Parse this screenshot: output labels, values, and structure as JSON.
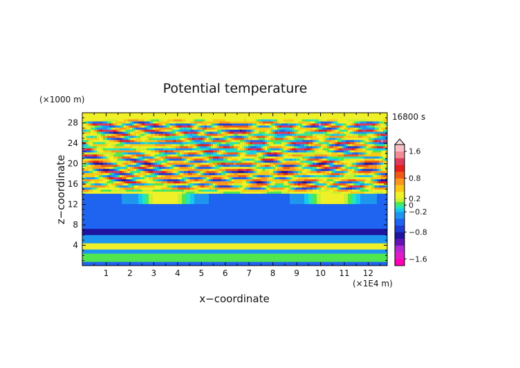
{
  "chart_data": {
    "type": "heatmap",
    "title": "Potential temperature",
    "xlabel": "x−coordinate",
    "ylabel": "z−coordinate",
    "x_unit": "(×1E4 m)",
    "y_unit": "(×1000 m)",
    "time_label": "16800 s",
    "xlim": [
      0,
      12.8
    ],
    "ylim": [
      0,
      30
    ],
    "x_ticks": [
      1,
      2,
      3,
      4,
      5,
      6,
      7,
      8,
      9,
      10,
      11,
      12
    ],
    "y_ticks": [
      4,
      8,
      12,
      16,
      20,
      24,
      28
    ],
    "colorbar": {
      "range": [
        -1.8,
        1.8
      ],
      "tick_labels": [
        {
          "value": 1.6,
          "label": "1.6"
        },
        {
          "value": 0.8,
          "label": "0.8"
        },
        {
          "value": 0.2,
          "label": "0.2"
        },
        {
          "value": 0,
          "label": "0"
        },
        {
          "value": -0.2,
          "label": "−0.2"
        },
        {
          "value": -0.8,
          "label": "−0.8"
        },
        {
          "value": -1.6,
          "label": "−1.6"
        }
      ],
      "levels": [
        {
          "lo": -1.8,
          "hi": -1.6,
          "color": "#ff00b4"
        },
        {
          "lo": -1.6,
          "hi": -1.4,
          "color": "#e01ec8"
        },
        {
          "lo": -1.4,
          "hi": -1.2,
          "color": "#b428d2"
        },
        {
          "lo": -1.2,
          "hi": -1.0,
          "color": "#6414b4"
        },
        {
          "lo": -1.0,
          "hi": -0.8,
          "color": "#1e14a0"
        },
        {
          "lo": -0.8,
          "hi": -0.6,
          "color": "#1e3cd2"
        },
        {
          "lo": -0.6,
          "hi": -0.4,
          "color": "#1e64f0"
        },
        {
          "lo": -0.4,
          "hi": -0.2,
          "color": "#1e96f0"
        },
        {
          "lo": -0.2,
          "hi": -0.1,
          "color": "#14c8f0"
        },
        {
          "lo": -0.1,
          "hi": 0.0,
          "color": "#28e6b4"
        },
        {
          "lo": 0.0,
          "hi": 0.1,
          "color": "#50e650"
        },
        {
          "lo": 0.1,
          "hi": 0.2,
          "color": "#c8f032"
        },
        {
          "lo": 0.2,
          "hi": 0.4,
          "color": "#f0f028"
        },
        {
          "lo": 0.4,
          "hi": 0.6,
          "color": "#fac814"
        },
        {
          "lo": 0.6,
          "hi": 0.8,
          "color": "#fa961e"
        },
        {
          "lo": 0.8,
          "hi": 1.0,
          "color": "#f05a14"
        },
        {
          "lo": 1.0,
          "hi": 1.2,
          "color": "#e61e1e"
        },
        {
          "lo": 1.2,
          "hi": 1.4,
          "color": "#dc3c5a"
        },
        {
          "lo": 1.4,
          "hi": 1.6,
          "color": "#f08c96"
        },
        {
          "lo": 1.6,
          "hi": 1.8,
          "color": "#fabec8"
        }
      ]
    },
    "field_regions": [
      {
        "z": [
          0.0,
          1.0
        ],
        "theta": -0.45
      },
      {
        "z": [
          1.0,
          2.6
        ],
        "theta": 0.05
      },
      {
        "z": [
          2.6,
          3.4
        ],
        "theta": -0.3
      },
      {
        "z": [
          3.4,
          4.6
        ],
        "theta": 0.2,
        "strongest_x": [
          5,
          8
        ],
        "peak": 0.35
      },
      {
        "z": [
          4.6,
          6.0
        ],
        "theta": -0.3
      },
      {
        "z": [
          6.0,
          7.2
        ],
        "theta": -0.8,
        "centered_x": 6.4,
        "peak": -1.0
      },
      {
        "z": [
          7.2,
          12.0
        ],
        "theta": -0.45
      },
      {
        "z": [
          12.0,
          14.0
        ],
        "theta": 0.2,
        "lobes_x": [
          3.5,
          10.5
        ]
      },
      {
        "z": [
          14.0,
          29.0
        ],
        "pattern": "wave interference cells",
        "amplitude": 1.5
      },
      {
        "z": [
          18.0,
          21.0
        ],
        "theta": 1.0,
        "centered_x": 6.4
      },
      {
        "z": [
          29.0,
          30.0
        ],
        "theta": 0.2
      }
    ]
  }
}
